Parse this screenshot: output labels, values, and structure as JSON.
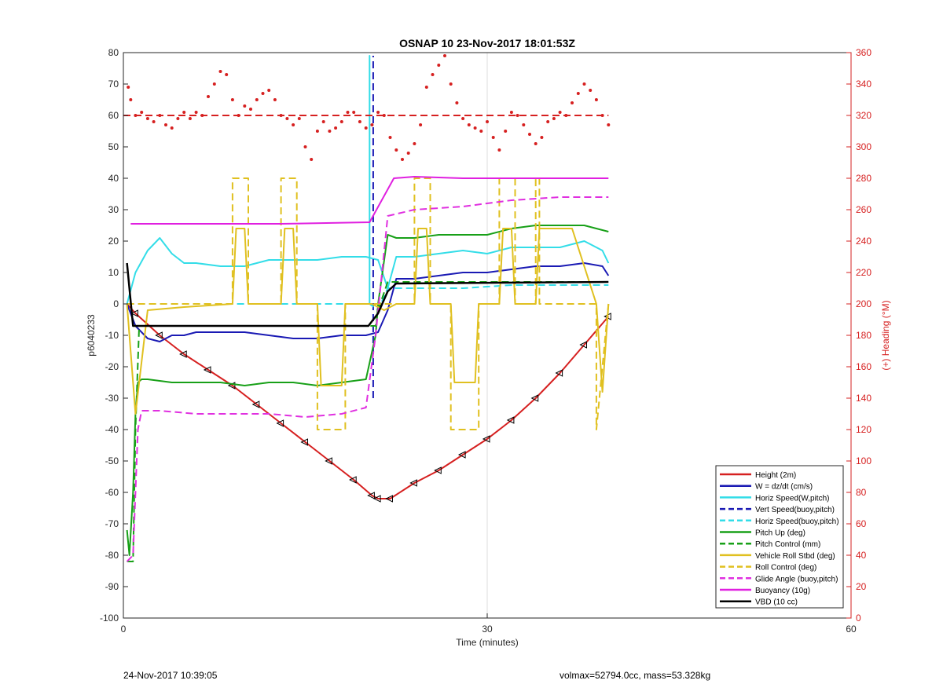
{
  "footer": {
    "timestamp": "24-Nov-2017 10:39:05",
    "mass_info": "volmax=52794.0cc, mass=53.328kg"
  },
  "chart_data": {
    "type": "line",
    "title": "OSNAP 10 23-Nov-2017 18:01:53Z",
    "xlabel": "Time (minutes)",
    "ylabel": "p6040233",
    "y2label": "(+) Heading (°M)",
    "xlim": [
      0,
      60
    ],
    "ylim": [
      -100,
      80
    ],
    "y2lim": [
      0,
      360
    ],
    "xticks": [
      0,
      30,
      60
    ],
    "yticks": [
      80,
      70,
      60,
      50,
      40,
      30,
      20,
      10,
      0,
      -10,
      -20,
      -30,
      -40,
      -50,
      -60,
      -70,
      -80,
      -90,
      -100
    ],
    "y2ticks": [
      360,
      340,
      320,
      300,
      280,
      260,
      240,
      220,
      200,
      180,
      160,
      140,
      120,
      100,
      80,
      60,
      40,
      20,
      0
    ],
    "grid": true,
    "legend_position": "bottom-right",
    "series": [
      {
        "name": "Height (2m)",
        "color": "#d62020",
        "style": "solid",
        "markers": "triangle",
        "x": [
          0.3,
          1,
          3,
          5,
          7,
          9,
          11,
          13,
          15,
          17,
          19,
          20.5,
          21,
          22,
          24,
          26,
          28,
          30,
          32,
          34,
          36,
          38,
          40
        ],
        "y": [
          0,
          -3,
          -10,
          -16,
          -21,
          -26,
          -32,
          -38,
          -44,
          -50,
          -56,
          -61,
          -62,
          -62,
          -57,
          -53,
          -48,
          -43,
          -37,
          -30,
          -22,
          -13,
          -4
        ]
      },
      {
        "name": "W = dz/dt (cm/s)",
        "color": "#1a1ab4",
        "style": "solid",
        "x": [
          0.3,
          1,
          2,
          3,
          4,
          5,
          6,
          8,
          10,
          12,
          14,
          16,
          18,
          20,
          21,
          21.8,
          22.5,
          24,
          26,
          28,
          30,
          32,
          34,
          36,
          38,
          39.5,
          40
        ],
        "y": [
          0,
          -7,
          -11,
          -12,
          -10,
          -10,
          -9,
          -9,
          -9,
          -10,
          -11,
          -11,
          -10,
          -10,
          -9,
          -2,
          8,
          8,
          9,
          10,
          10,
          11,
          12,
          12,
          13,
          12,
          9
        ]
      },
      {
        "name": "Horiz Speed(W,pitch)",
        "color": "#33dde8",
        "style": "solid",
        "x": [
          0.3,
          1,
          2,
          3,
          4,
          5,
          6,
          8,
          10,
          12,
          14,
          16,
          18,
          20,
          21,
          21.8,
          22.5,
          24,
          26,
          28,
          30,
          32,
          34,
          36,
          38,
          39.5,
          40
        ],
        "y": [
          0,
          10,
          17,
          21,
          16,
          13,
          13,
          12,
          12,
          14,
          14,
          14,
          15,
          15,
          14,
          5,
          15,
          15,
          16,
          17,
          16,
          18,
          18,
          18,
          20,
          17,
          13
        ]
      },
      {
        "name": "Vert Speed(buoy,pitch)",
        "color": "#1a1ab4",
        "style": "dashed",
        "x": [
          20.6,
          20.6
        ],
        "y": [
          -30,
          79
        ]
      },
      {
        "name": "Horiz Speed(buoy,pitch)",
        "color": "#33dde8",
        "style": "dashed",
        "x": [
          0.3,
          20.3,
          20.3,
          20.3,
          21,
          21.8,
          22.5,
          24,
          28,
          32,
          36,
          40
        ],
        "y": [
          0,
          0,
          79,
          0,
          -2,
          5,
          5,
          5,
          5,
          6,
          6,
          6
        ]
      },
      {
        "name": "Pitch Up (deg)",
        "color": "#18a018",
        "style": "solid",
        "x": [
          0.3,
          0.5,
          0.8,
          1,
          1.2,
          1.5,
          2,
          4,
          6,
          8,
          10,
          12,
          14,
          16,
          18,
          20,
          20.8,
          21,
          21.8,
          22.5,
          24,
          26,
          28,
          30,
          32,
          34,
          36,
          38,
          40
        ],
        "y": [
          -72,
          -80,
          -60,
          -35,
          -25,
          -24,
          -24,
          -25,
          -25,
          -25,
          -26,
          -25,
          -25,
          -26,
          -25,
          -24,
          -10,
          0,
          22,
          21,
          21,
          22,
          22,
          22,
          24,
          25,
          25,
          25,
          23
        ]
      },
      {
        "name": "Pitch Control (mm)",
        "color": "#18a018",
        "style": "dashed",
        "x": [
          0.3,
          0.8,
          1,
          1.3,
          20.8,
          21,
          21.8,
          40
        ],
        "y": [
          -82,
          -82,
          -40,
          -7,
          -7,
          -2,
          7,
          7
        ]
      },
      {
        "name": "Vehicle Roll Stbd (deg)",
        "color": "#e0c020",
        "style": "solid",
        "x": [
          0.3,
          1,
          2,
          5,
          9,
          9.3,
          10,
          10.3,
          13,
          13.3,
          14,
          14.3,
          16,
          16.3,
          18,
          18.3,
          20.5,
          21.5,
          22.5,
          24,
          24.3,
          25,
          25.3,
          27,
          27.3,
          29,
          29.3,
          31,
          31.3,
          32,
          32.3,
          34,
          34.3,
          37,
          39,
          39.5,
          40
        ],
        "y": [
          0,
          -35,
          -2,
          -1,
          0,
          24,
          24,
          0,
          0,
          24,
          24,
          0,
          0,
          -26,
          -26,
          0,
          0,
          -2,
          0,
          0,
          24,
          24,
          0,
          0,
          -25,
          -25,
          0,
          0,
          24,
          24,
          0,
          0,
          24,
          24,
          0,
          -28,
          0
        ]
      },
      {
        "name": "Roll Control (deg)",
        "color": "#e0c020",
        "style": "dashed",
        "x": [
          0.3,
          9,
          9,
          10.3,
          10.3,
          13,
          13,
          14.3,
          14.3,
          16,
          16,
          18.3,
          18.3,
          24,
          24,
          25.3,
          25.3,
          27,
          27,
          29.3,
          29.3,
          31,
          31,
          32.3,
          32.3,
          34,
          34,
          34.3,
          34.3,
          39,
          39,
          40
        ],
        "y": [
          0,
          0,
          40,
          40,
          0,
          0,
          40,
          40,
          0,
          0,
          -40,
          -40,
          0,
          0,
          40,
          40,
          0,
          0,
          -40,
          -40,
          0,
          0,
          40,
          40,
          0,
          0,
          40,
          40,
          0,
          0,
          -40,
          0
        ]
      },
      {
        "name": "Glide Angle (buoy,pitch)",
        "color": "#e030e0",
        "style": "dashed",
        "x": [
          0.3,
          0.8,
          1.2,
          1.5,
          3,
          6,
          9,
          12,
          15,
          18,
          20,
          20.8,
          21.8,
          24,
          28,
          32,
          36,
          40
        ],
        "y": [
          -82,
          -80,
          -40,
          -34,
          -34,
          -35,
          -35,
          -35,
          -36,
          -35,
          -33,
          -10,
          28,
          30,
          31,
          33,
          34,
          34
        ]
      },
      {
        "name": "Buoyancy (10g)",
        "color": "#e020e0",
        "style": "solid",
        "x": [
          0.6,
          13,
          20.3,
          22.3,
          24,
          28,
          32,
          40
        ],
        "y": [
          25.5,
          25.5,
          26,
          40,
          40.5,
          40,
          40,
          40
        ]
      },
      {
        "name": "VBD (10 cc)",
        "color": "#000000",
        "style": "solid",
        "x": [
          0.3,
          0.8,
          1.3,
          20.2,
          21,
          21.8,
          22.5,
          40
        ],
        "y": [
          13,
          -7,
          -7,
          -7,
          -3,
          4,
          6.5,
          7
        ]
      },
      {
        "name": "",
        "color": "#d62020",
        "style": "dashed",
        "x": [
          0,
          40
        ],
        "y": [
          320,
          320
        ],
        "axis": "y2"
      },
      {
        "name": "",
        "color": "#d62020",
        "style": "dotted",
        "axis": "y2",
        "x": [
          0.4,
          0.6,
          1,
          1.5,
          2,
          2.5,
          3,
          3.5,
          4,
          4.5,
          5,
          5.5,
          6,
          6.5,
          7,
          7.5,
          8,
          8.5,
          9,
          9.5,
          10,
          10.5,
          11,
          11.5,
          12,
          12.5,
          13,
          13.5,
          14,
          14.5,
          15,
          15.5,
          16,
          16.5,
          17,
          17.5,
          18,
          18.5,
          19,
          19.5,
          20,
          20.5,
          21,
          21.5,
          22,
          22.5,
          23,
          23.5,
          24,
          24.5,
          25,
          25.5,
          26,
          26.5,
          27,
          27.5,
          28,
          28.5,
          29,
          29.5,
          30,
          30.5,
          31,
          31.5,
          32,
          32.5,
          33,
          33.5,
          34,
          34.5,
          35,
          35.5,
          36,
          36.5,
          37,
          37.5,
          38,
          38.5,
          39,
          39.5,
          40
        ],
        "y": [
          338,
          330,
          320,
          322,
          318,
          316,
          320,
          314,
          312,
          318,
          322,
          318,
          322,
          320,
          332,
          340,
          348,
          346,
          330,
          320,
          326,
          324,
          330,
          334,
          336,
          330,
          320,
          318,
          314,
          318,
          300,
          292,
          310,
          316,
          310,
          312,
          316,
          322,
          322,
          316,
          312,
          314,
          322,
          320,
          306,
          298,
          292,
          296,
          302,
          314,
          338,
          346,
          352,
          358,
          340,
          328,
          318,
          314,
          312,
          310,
          316,
          306,
          298,
          310,
          322,
          320,
          314,
          308,
          302,
          306,
          316,
          318,
          322,
          320,
          328,
          334,
          340,
          336,
          330,
          320,
          314
        ]
      }
    ]
  }
}
